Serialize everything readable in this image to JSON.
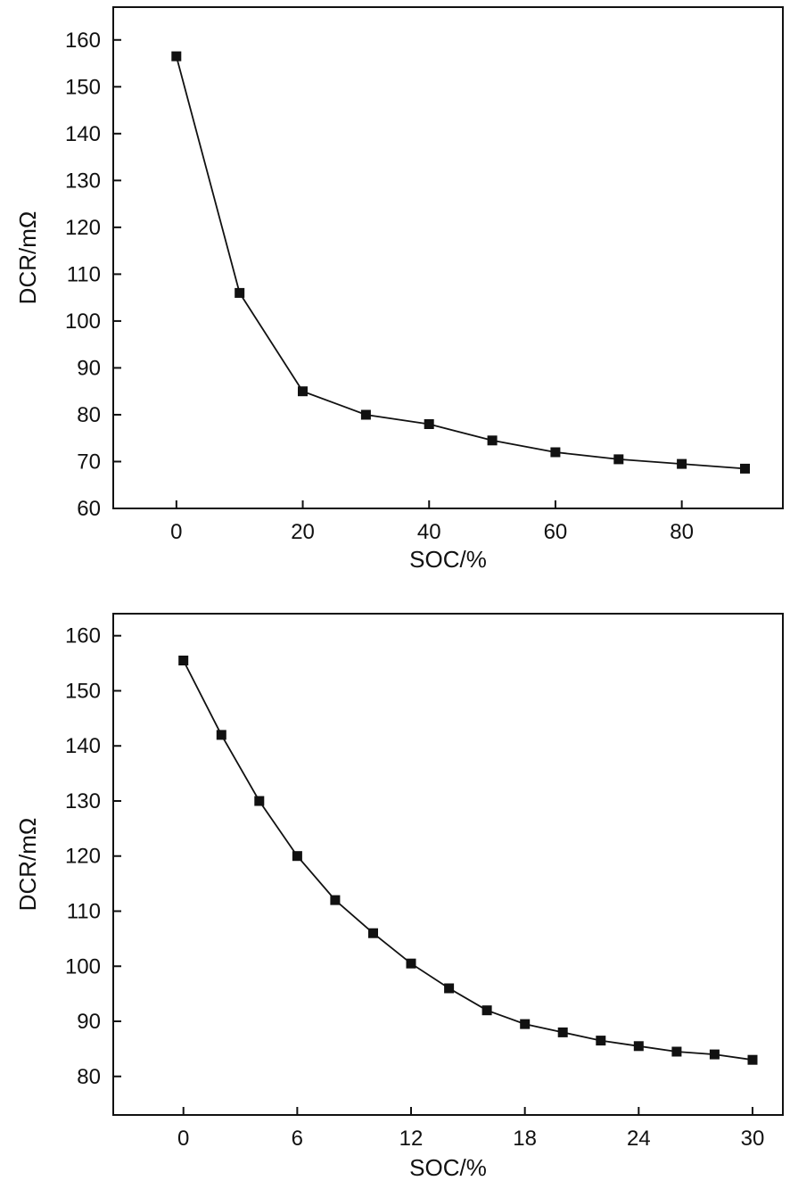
{
  "page": {
    "background": "#ffffff",
    "ink_color": "#111111"
  },
  "chart_data": [
    {
      "type": "line",
      "title": "",
      "xlabel": "SOC/%",
      "ylabel": "DCR/mΩ",
      "x": [
        0,
        10,
        20,
        30,
        40,
        50,
        60,
        70,
        80,
        90
      ],
      "series": [
        {
          "name": "DCR",
          "values": [
            156.5,
            106,
            85,
            80,
            78,
            74.5,
            72,
            70.5,
            69.5,
            68.5
          ]
        }
      ],
      "xlim": [
        -10,
        96
      ],
      "ylim": [
        60,
        167
      ],
      "xticks": [
        0,
        20,
        40,
        60,
        80
      ],
      "yticks": [
        60,
        70,
        80,
        90,
        100,
        110,
        120,
        130,
        140,
        150,
        160
      ],
      "marker": "filled-square",
      "line_color": "#111111",
      "marker_color": "#111111",
      "grid": false,
      "legend": "none",
      "frame": "full-box"
    },
    {
      "type": "line",
      "title": "",
      "xlabel": "SOC/%",
      "ylabel": "DCR/mΩ",
      "x": [
        0,
        2,
        4,
        6,
        8,
        10,
        12,
        14,
        16,
        18,
        20,
        22,
        24,
        26,
        28,
        30
      ],
      "series": [
        {
          "name": "DCR",
          "values": [
            155.5,
            142,
            130,
            120,
            112,
            106,
            100.5,
            96,
            92,
            89.5,
            88,
            86.5,
            85.5,
            84.5,
            84,
            83
          ]
        }
      ],
      "xlim": [
        -3.7,
        31.6
      ],
      "ylim": [
        73,
        164
      ],
      "xticks": [
        0,
        6,
        12,
        18,
        24,
        30
      ],
      "yticks": [
        80,
        90,
        100,
        110,
        120,
        130,
        140,
        150,
        160
      ],
      "marker": "filled-square",
      "line_color": "#111111",
      "marker_color": "#111111",
      "grid": false,
      "legend": "none",
      "frame": "full-box"
    }
  ]
}
